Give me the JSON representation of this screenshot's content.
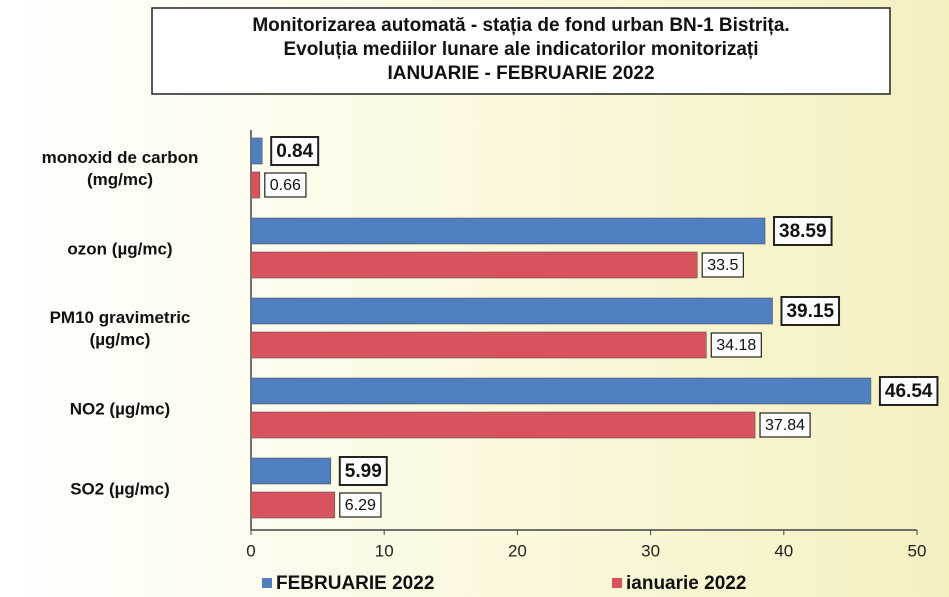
{
  "chart_data": {
    "type": "barh",
    "title": [
      "Monitorizarea automată  - stația de fond urban BN-1 Bistrița.",
      "Evoluția mediilor lunare ale indicatorilor monitorizați",
      "IANUARIE  - FEBRUARIE  2022"
    ],
    "categories": [
      "monoxid de carbon (mg/mc)",
      "ozon (µg/mc)",
      "PM10 gravimetric (µg/mc)",
      "NO2 (µg/mc)",
      "SO2 (µg/mc)"
    ],
    "series": [
      {
        "name": "FEBRUARIE 2022",
        "color": "#4f7fc0",
        "values": [
          0.84,
          38.59,
          39.15,
          46.54,
          5.99
        ]
      },
      {
        "name": "ianuarie 2022",
        "color": "#d9535f",
        "values": [
          0.66,
          33.5,
          34.18,
          37.84,
          6.29
        ]
      }
    ],
    "xlim": [
      0,
      50
    ],
    "xticks": [
      0,
      10,
      20,
      30,
      40,
      50
    ],
    "legend": "bottom"
  }
}
